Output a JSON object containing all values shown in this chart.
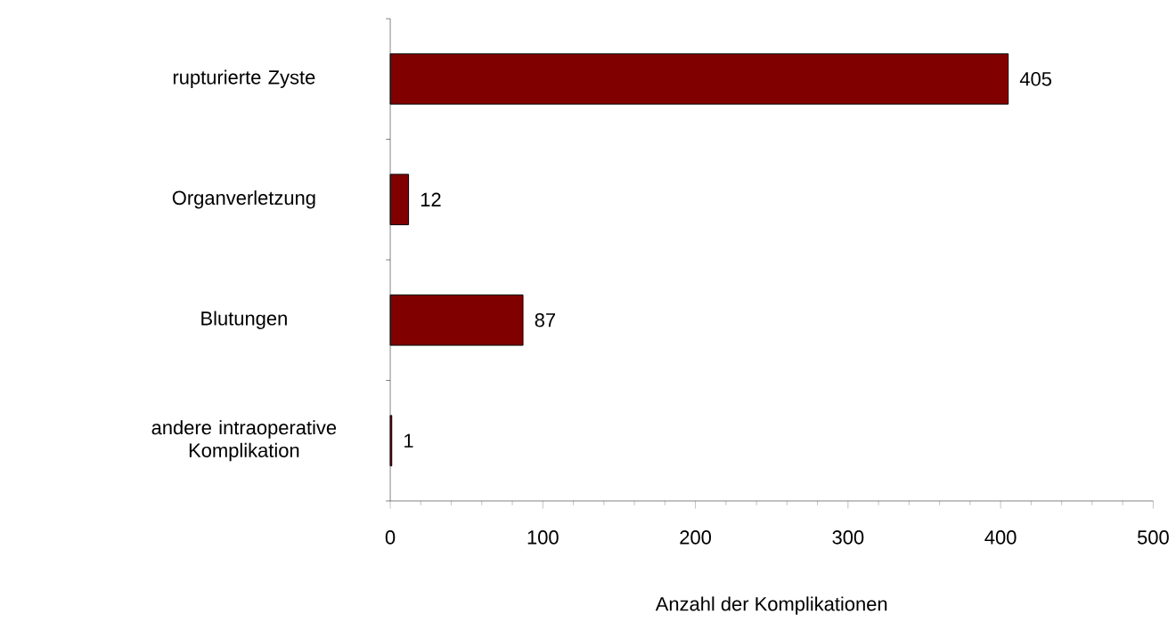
{
  "chart_data": {
    "type": "bar",
    "orientation": "horizontal",
    "categories": [
      "rupturierte Zyste",
      "Organverletzung",
      "Blutungen",
      "andere intraoperative Komplikation"
    ],
    "values": [
      405,
      12,
      87,
      1
    ],
    "color": "#800000",
    "xlim": [
      0,
      500
    ],
    "xticks": [
      0,
      100,
      200,
      300,
      400,
      500
    ],
    "xlabel": "Anzahl der Komplikationen",
    "data_labels": true
  }
}
